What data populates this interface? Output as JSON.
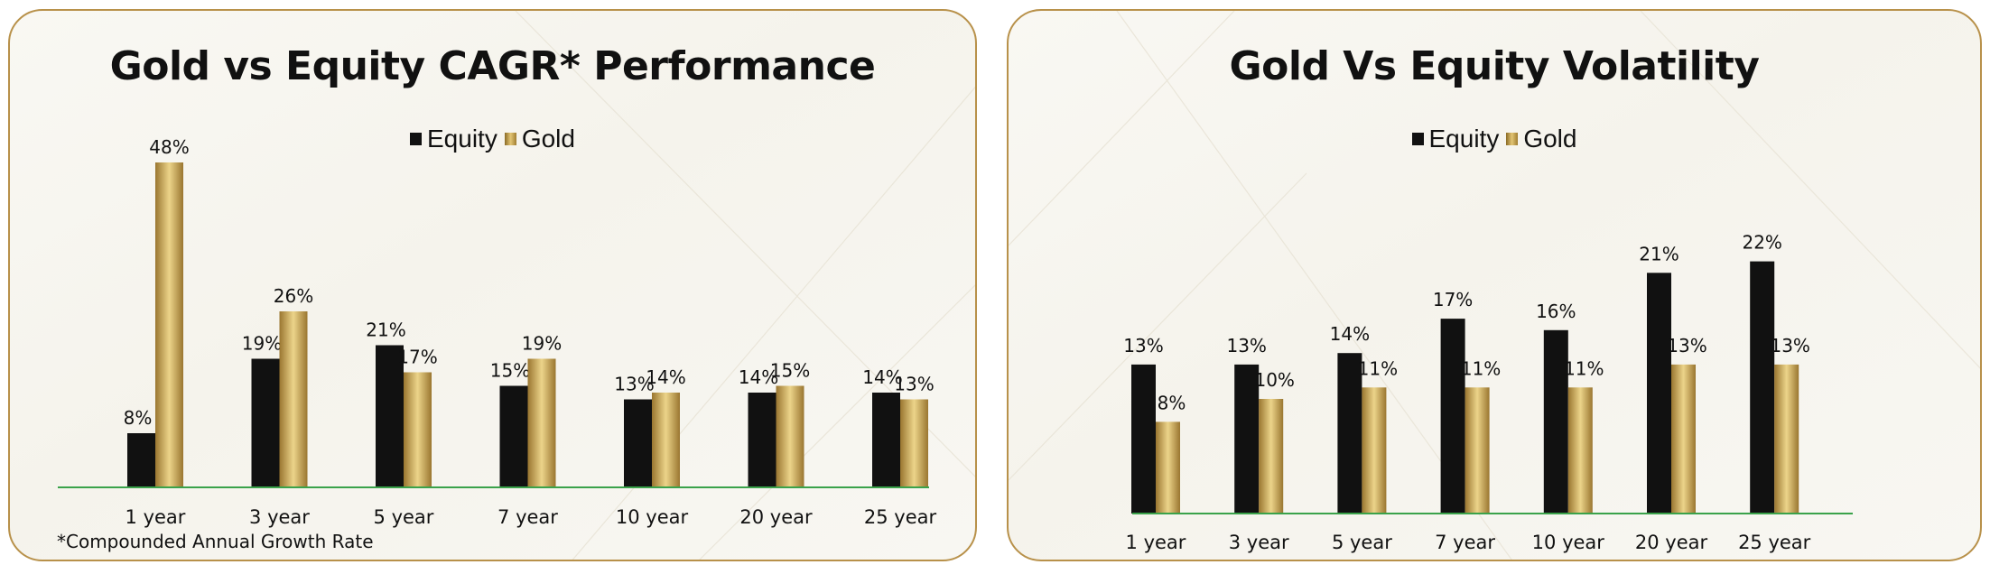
{
  "colors": {
    "equity": "#111111",
    "gold_dark": "#9a7630",
    "gold_light": "#ecd48a",
    "baseline": "#3aa24a",
    "border": "#b8914a"
  },
  "chart_data": [
    {
      "type": "bar",
      "title": "Gold vs Equity CAGR* Performance",
      "categories": [
        "1 year",
        "3 year",
        "5 year",
        "7 year",
        "10 year",
        "20 year",
        "25 year"
      ],
      "series": [
        {
          "name": "Equity",
          "values": [
            8,
            19,
            21,
            15,
            13,
            14,
            14
          ]
        },
        {
          "name": "Gold",
          "values": [
            48,
            26,
            17,
            19,
            14,
            15,
            13
          ]
        }
      ],
      "data_labels": {
        "Equity": [
          "8%",
          "19%",
          "21%",
          "15%",
          "13%",
          "14%",
          "14%"
        ],
        "Gold": [
          "48%",
          "26%",
          "17%",
          "19%",
          "14%",
          "15%",
          "13%"
        ]
      },
      "legend_position": "top-center",
      "grid": false,
      "ylim": [
        0,
        50
      ],
      "footnote": "*Compounded Annual Growth Rate"
    },
    {
      "type": "bar",
      "title": "Gold Vs Equity Volatility",
      "categories": [
        "1 year",
        "3 year",
        "5 year",
        "7 year",
        "10 year",
        "20 year",
        "25 year"
      ],
      "series": [
        {
          "name": "Equity",
          "values": [
            13,
            13,
            14,
            17,
            16,
            21,
            22
          ]
        },
        {
          "name": "Gold",
          "values": [
            8,
            10,
            11,
            11,
            11,
            13,
            13
          ]
        }
      ],
      "data_labels": {
        "Equity": [
          "13%",
          "13%",
          "14%",
          "17%",
          "16%",
          "21%",
          "22%"
        ],
        "Gold": [
          "8%",
          "10%",
          "11%",
          "11%",
          "11%",
          "13%",
          "13%"
        ]
      },
      "legend_position": "top-center",
      "grid": false,
      "ylim": [
        0,
        25
      ]
    }
  ]
}
